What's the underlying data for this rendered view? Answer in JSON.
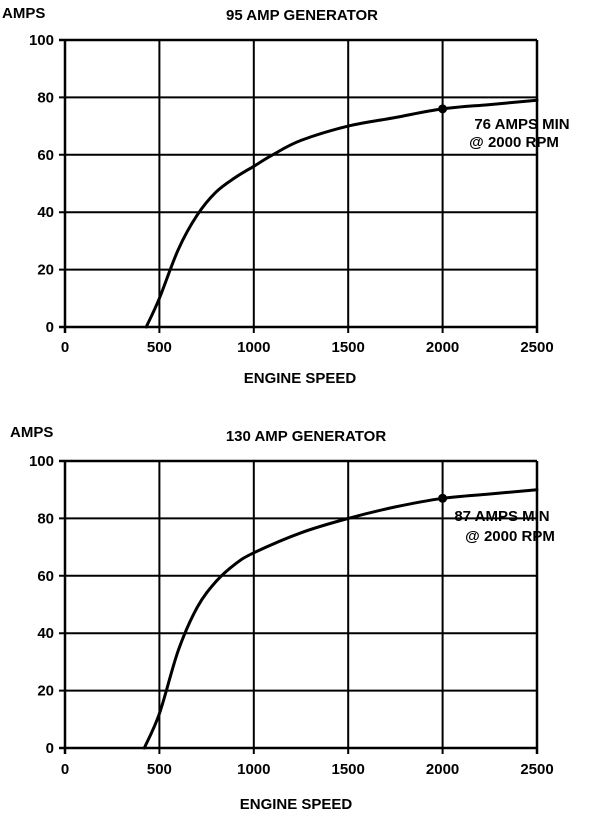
{
  "chart_data": [
    {
      "type": "line",
      "title": "95 AMP GENERATOR",
      "xlabel": "ENGINE SPEED",
      "ylabel": "AMPS",
      "xlim": [
        0,
        2500
      ],
      "ylim": [
        0,
        100
      ],
      "xticks": [
        0,
        500,
        1000,
        1500,
        2000,
        2500
      ],
      "yticks": [
        0,
        20,
        40,
        60,
        80,
        100
      ],
      "grid": true,
      "series": [
        {
          "x": [
            430,
            500,
            600,
            700,
            800,
            900,
            1000,
            1100,
            1250,
            1500,
            1750,
            2000,
            2250,
            2500
          ],
          "y": [
            0,
            10,
            27,
            39,
            47,
            52,
            56,
            60,
            65,
            70,
            73,
            76,
            77.5,
            79
          ]
        }
      ],
      "annotation": {
        "x": 2000,
        "y": 76,
        "lines": [
          "76 AMPS MIN",
          "@ 2000 RPM"
        ]
      }
    },
    {
      "type": "line",
      "title": "130 AMP GENERATOR",
      "xlabel": "ENGINE SPEED",
      "ylabel": "AMPS",
      "xlim": [
        0,
        2500
      ],
      "ylim": [
        0,
        100
      ],
      "xticks": [
        0,
        500,
        1000,
        1500,
        2000,
        2500
      ],
      "yticks": [
        0,
        20,
        40,
        60,
        80,
        100
      ],
      "grid": true,
      "series": [
        {
          "x": [
            420,
            500,
            600,
            700,
            800,
            900,
            1000,
            1250,
            1500,
            1750,
            2000,
            2250,
            2500
          ],
          "y": [
            0,
            12,
            34,
            49,
            58,
            64,
            68,
            75,
            80,
            84,
            87,
            88.5,
            90
          ]
        }
      ],
      "annotation": {
        "x": 2000,
        "y": 87,
        "lines": [
          "87 AMPS MIN",
          "@ 2000 RPM"
        ]
      }
    }
  ]
}
